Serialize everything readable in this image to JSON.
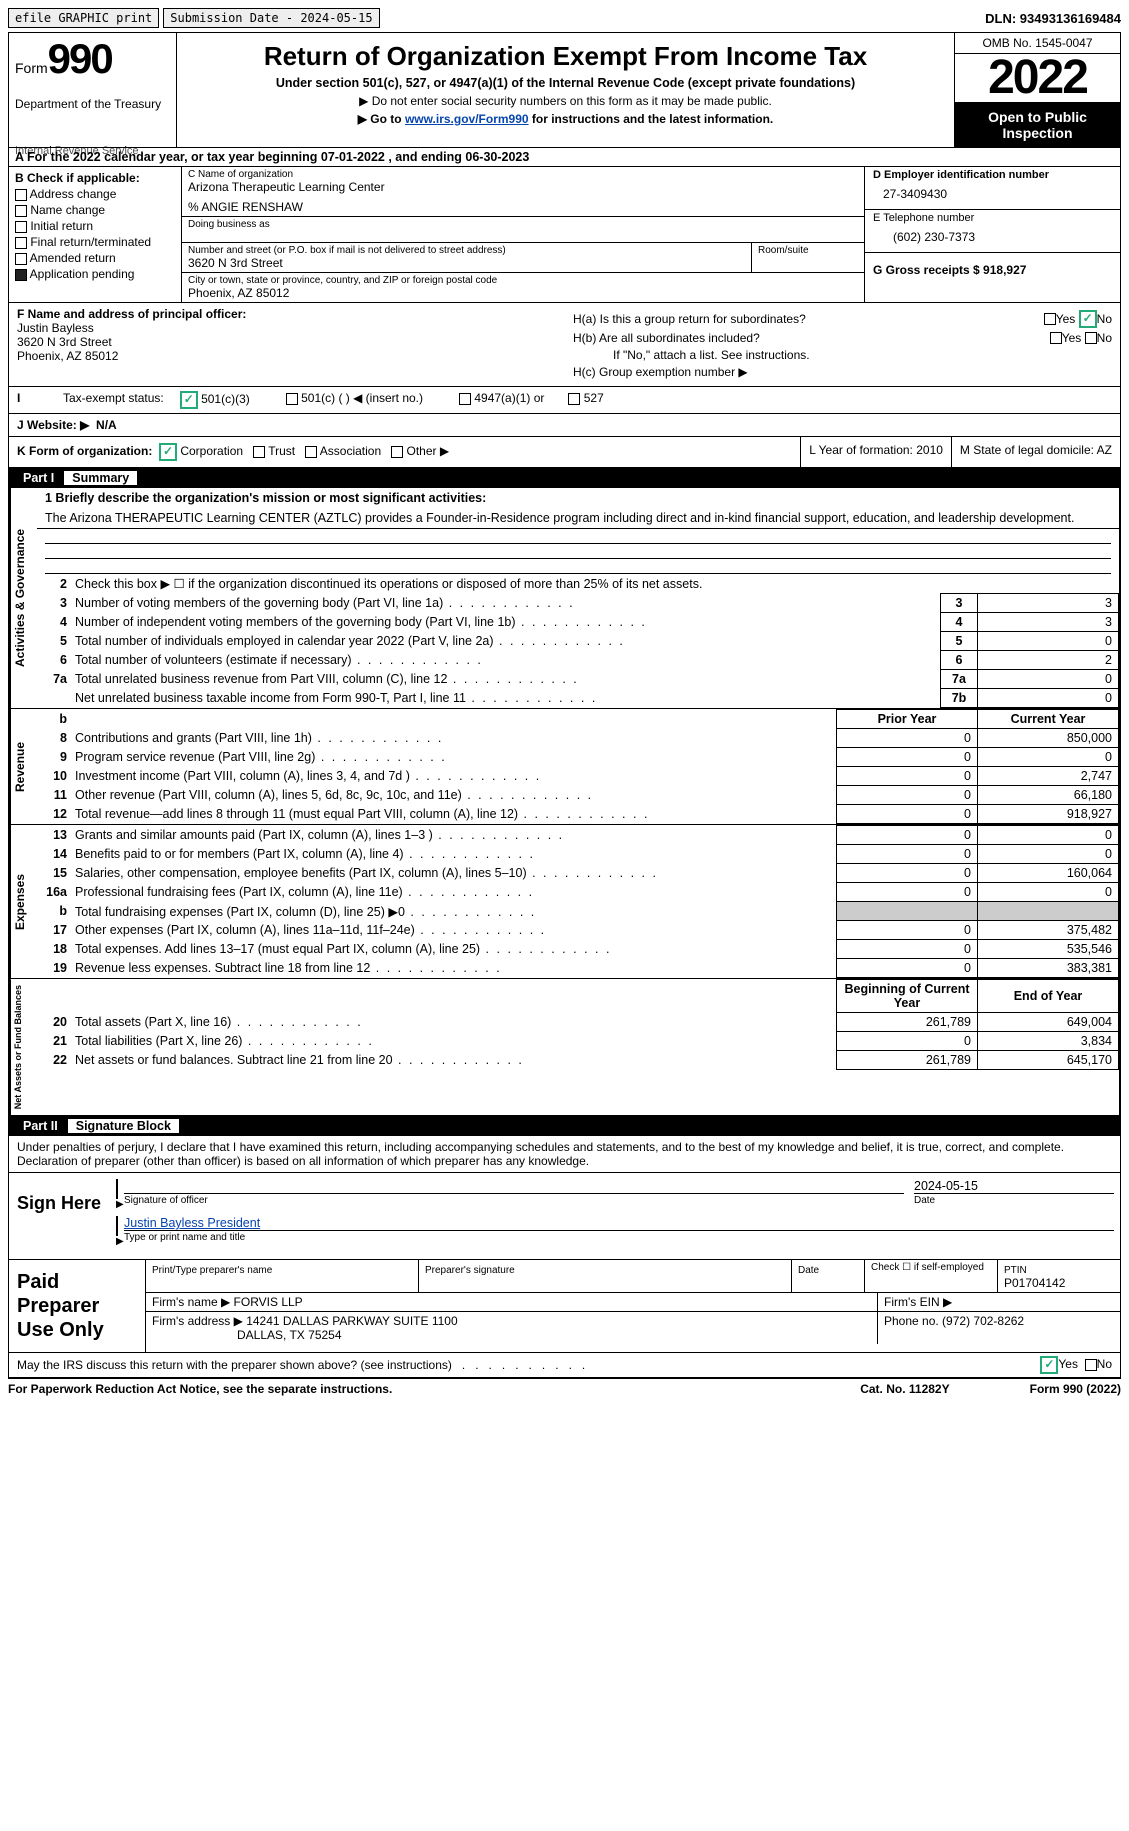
{
  "topbar": {
    "efile_btn": "efile GRAPHIC print",
    "sub_date_label": "Submission Date - 2024-05-15",
    "dln": "DLN: 93493136169484"
  },
  "header": {
    "form_label": "Form",
    "form_num": "990",
    "dept": "Department of the Treasury",
    "irs": "Internal Revenue Service",
    "title": "Return of Organization Exempt From Income Tax",
    "subtitle": "Under section 501(c), 527, or 4947(a)(1) of the Internal Revenue Code (except private foundations)",
    "instr1": "▶ Do not enter social security numbers on this form as it may be made public.",
    "instr2_pre": "▶ Go to ",
    "instr2_link": "www.irs.gov/Form990",
    "instr2_post": " for instructions and the latest information.",
    "omb": "OMB No. 1545-0047",
    "year": "2022",
    "open": "Open to Public Inspection"
  },
  "row_a": "A For the 2022 calendar year, or tax year beginning 07-01-2022    , and ending 06-30-2023",
  "col_b": {
    "header": "B Check if applicable:",
    "opts": [
      "Address change",
      "Name change",
      "Initial return",
      "Final return/terminated",
      "Amended return",
      "Application pending"
    ]
  },
  "col_c": {
    "name_lbl": "C Name of organization",
    "name": "Arizona Therapeutic Learning Center",
    "care": "% ANGIE RENSHAW",
    "dba_lbl": "Doing business as",
    "addr_lbl": "Number and street (or P.O. box if mail is not delivered to street address)",
    "room_lbl": "Room/suite",
    "addr": "3620 N 3rd Street",
    "city_lbl": "City or town, state or province, country, and ZIP or foreign postal code",
    "city": "Phoenix, AZ  85012"
  },
  "col_d": {
    "ein_lbl": "D Employer identification number",
    "ein": "27-3409430",
    "tel_lbl": "E Telephone number",
    "tel": "(602) 230-7373",
    "gross": "G Gross receipts $ 918,927"
  },
  "col_f": {
    "lbl": "F Name and address of principal officer:",
    "name": "Justin Bayless",
    "addr": "3620 N 3rd Street",
    "city": "Phoenix, AZ  85012"
  },
  "col_h": {
    "ha": "H(a)  Is this a group return for subordinates?",
    "hb": "H(b)  Are all subordinates included?",
    "hb_note": "If \"No,\" attach a list. See instructions.",
    "hc": "H(c)  Group exemption number ▶",
    "yes": "Yes",
    "no": "No"
  },
  "row_i": {
    "lbl": "Tax-exempt status:",
    "o1": "501(c)(3)",
    "o2": "501(c) (  ) ◀ (insert no.)",
    "o3": "4947(a)(1) or",
    "o4": "527"
  },
  "row_j": {
    "lbl": "J   Website: ▶",
    "val": "N/A"
  },
  "row_k": {
    "lbl": "K Form of organization:",
    "opts": [
      "Corporation",
      "Trust",
      "Association",
      "Other ▶"
    ],
    "l": "L Year of formation: 2010",
    "m": "M State of legal domicile: AZ"
  },
  "part1": {
    "num": "Part I",
    "title": "Summary"
  },
  "mission": {
    "lbl": "1   Briefly describe the organization's mission or most significant activities:",
    "text": "The Arizona THERAPEUTIC Learning CENTER (AZTLC) provides a Founder-in-Residence program including direct and in-kind financial support, education, and leadership development."
  },
  "line2": "Check this box ▶ ☐  if the organization discontinued its operations or disposed of more than 25% of its net assets.",
  "governance_rows": [
    {
      "n": "3",
      "desc": "Number of voting members of the governing body (Part VI, line 1a)",
      "box": "3",
      "val": "3"
    },
    {
      "n": "4",
      "desc": "Number of independent voting members of the governing body (Part VI, line 1b)",
      "box": "4",
      "val": "3"
    },
    {
      "n": "5",
      "desc": "Total number of individuals employed in calendar year 2022 (Part V, line 2a)",
      "box": "5",
      "val": "0"
    },
    {
      "n": "6",
      "desc": "Total number of volunteers (estimate if necessary)",
      "box": "6",
      "val": "2"
    },
    {
      "n": "7a",
      "desc": "Total unrelated business revenue from Part VIII, column (C), line 12",
      "box": "7a",
      "val": "0"
    },
    {
      "n": "",
      "desc": "Net unrelated business taxable income from Form 990-T, Part I, line 11",
      "box": "7b",
      "val": "0"
    }
  ],
  "col_headers": {
    "b": "b",
    "prior": "Prior Year",
    "curr": "Current Year"
  },
  "revenue_rows": [
    {
      "n": "8",
      "desc": "Contributions and grants (Part VIII, line 1h)",
      "p": "0",
      "c": "850,000"
    },
    {
      "n": "9",
      "desc": "Program service revenue (Part VIII, line 2g)",
      "p": "0",
      "c": "0"
    },
    {
      "n": "10",
      "desc": "Investment income (Part VIII, column (A), lines 3, 4, and 7d )",
      "p": "0",
      "c": "2,747"
    },
    {
      "n": "11",
      "desc": "Other revenue (Part VIII, column (A), lines 5, 6d, 8c, 9c, 10c, and 11e)",
      "p": "0",
      "c": "66,180"
    },
    {
      "n": "12",
      "desc": "Total revenue—add lines 8 through 11 (must equal Part VIII, column (A), line 12)",
      "p": "0",
      "c": "918,927"
    }
  ],
  "expense_rows": [
    {
      "n": "13",
      "desc": "Grants and similar amounts paid (Part IX, column (A), lines 1–3 )",
      "p": "0",
      "c": "0"
    },
    {
      "n": "14",
      "desc": "Benefits paid to or for members (Part IX, column (A), line 4)",
      "p": "0",
      "c": "0"
    },
    {
      "n": "15",
      "desc": "Salaries, other compensation, employee benefits (Part IX, column (A), lines 5–10)",
      "p": "0",
      "c": "160,064"
    },
    {
      "n": "16a",
      "desc": "Professional fundraising fees (Part IX, column (A), line 11e)",
      "p": "0",
      "c": "0"
    },
    {
      "n": "b",
      "desc": "Total fundraising expenses (Part IX, column (D), line 25) ▶0",
      "p": "",
      "c": "",
      "gray": true
    },
    {
      "n": "17",
      "desc": "Other expenses (Part IX, column (A), lines 11a–11d, 11f–24e)",
      "p": "0",
      "c": "375,482"
    },
    {
      "n": "18",
      "desc": "Total expenses. Add lines 13–17 (must equal Part IX, column (A), line 25)",
      "p": "0",
      "c": "535,546"
    },
    {
      "n": "19",
      "desc": "Revenue less expenses. Subtract line 18 from line 12",
      "p": "0",
      "c": "383,381"
    }
  ],
  "net_headers": {
    "b": "Beginning of Current Year",
    "e": "End of Year"
  },
  "net_rows": [
    {
      "n": "20",
      "desc": "Total assets (Part X, line 16)",
      "p": "261,789",
      "c": "649,004"
    },
    {
      "n": "21",
      "desc": "Total liabilities (Part X, line 26)",
      "p": "0",
      "c": "3,834"
    },
    {
      "n": "22",
      "desc": "Net assets or fund balances. Subtract line 21 from line 20",
      "p": "261,789",
      "c": "645,170"
    }
  ],
  "part2": {
    "num": "Part II",
    "title": "Signature Block"
  },
  "declaration": "Under penalties of perjury, I declare that I have examined this return, including accompanying schedules and statements, and to the best of my knowledge and belief, it is true, correct, and complete. Declaration of preparer (other than officer) is based on all information of which preparer has any knowledge.",
  "sign": {
    "here": "Sign Here",
    "date": "2024-05-15",
    "sig_lbl": "Signature of officer",
    "date_lbl": "Date",
    "name": "Justin Bayless  President",
    "name_lbl": "Type or print name and title"
  },
  "paid": {
    "lbl": "Paid Preparer Use Only",
    "r1": {
      "a": "Print/Type preparer's name",
      "b": "Preparer's signature",
      "c": "Date",
      "d": "Check ☐ if self-employed",
      "e": "PTIN",
      "e2": "P01704142"
    },
    "r2": {
      "a": "Firm's name    ▶ FORVIS LLP",
      "b": "Firm's EIN ▶"
    },
    "r3": {
      "a": "Firm's address ▶ 14241 DALLAS PARKWAY SUITE 1100",
      "a2": "DALLAS, TX  75254",
      "b": "Phone no. (972) 702-8262"
    }
  },
  "footer": {
    "q": "May the IRS discuss this return with the preparer shown above? (see instructions)",
    "yes": "Yes",
    "no": "No"
  },
  "paperwork": {
    "l": "For Paperwork Reduction Act Notice, see the separate instructions.",
    "m": "Cat. No. 11282Y",
    "r": "Form 990 (2022)"
  },
  "side_labels": {
    "ag": "Activities & Governance",
    "rev": "Revenue",
    "exp": "Expenses",
    "net": "Net Assets or Fund Balances"
  }
}
